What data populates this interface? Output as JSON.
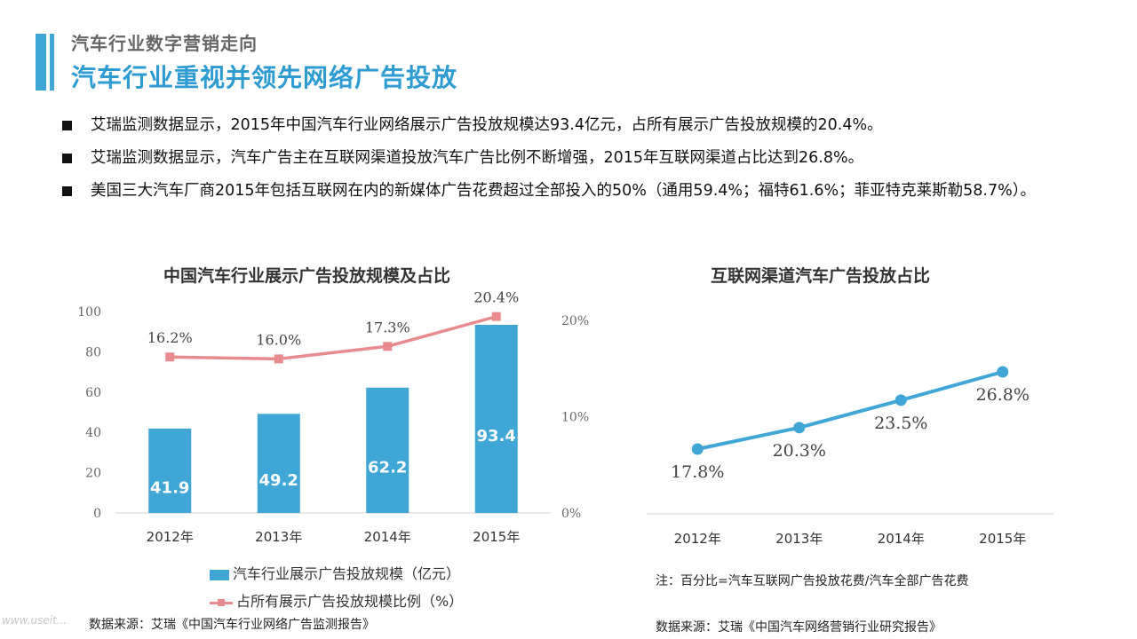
{
  "header": {
    "subtitle": "汽车行业数字营销走向",
    "title": "汽车行业重视并领先网络广告投放"
  },
  "bullets": [
    "艾瑞监测数据显示，2015年中国汽车行业网络展示广告投放规模达93.4亿元，占所有展示广告投放规模的20.4%。",
    "艾瑞监测数据显示，汽车广告主在互联网渠道投放汽车广告比例不断增强，2015年互联网渠道占比达到26.8%。",
    "美国三大汽车厂商2015年包括互联网在内的新媒体广告花费超过全部投入的50%（通用59.4%；福特61.6%；菲亚特克莱斯勒58.7%）。"
  ],
  "colors": {
    "accent": "#3fa6d6",
    "line_pink": "#e88b8f",
    "title_blue": "#2e9bd1"
  },
  "chart_data": [
    {
      "type": "bar",
      "title": "中国汽车行业展示广告投放规模及占比",
      "categories": [
        "2012年",
        "2013年",
        "2014年",
        "2015年"
      ],
      "series": [
        {
          "name": "汽车行业展示广告投放规模（亿元）",
          "type": "bar",
          "axis": "left",
          "values": [
            41.9,
            49.2,
            62.2,
            93.4
          ],
          "labels": [
            "41.9",
            "49.2",
            "62.2",
            "93.4"
          ]
        },
        {
          "name": "占所有展示广告投放规模比例（%）",
          "type": "line",
          "axis": "right",
          "values": [
            16.2,
            16.0,
            17.3,
            20.4
          ],
          "labels": [
            "16.2%",
            "16.0%",
            "17.3%",
            "20.4%"
          ]
        }
      ],
      "ylim": [
        0,
        100
      ],
      "yticks": [
        "0",
        "20",
        "40",
        "60",
        "80",
        "100"
      ],
      "y2lim": [
        0,
        20
      ],
      "y2ticks": [
        "0%",
        "10%",
        "20%"
      ],
      "legend": "bottom",
      "grid": false,
      "source": "数据来源：艾瑞《中国汽车行业网络广告监测报告》"
    },
    {
      "type": "line",
      "title": "互联网渠道汽车广告投放占比",
      "categories": [
        "2012年",
        "2013年",
        "2014年",
        "2015年"
      ],
      "series": [
        {
          "values": [
            17.8,
            20.3,
            23.5,
            26.8
          ],
          "labels": [
            "17.8%",
            "20.3%",
            "23.5%",
            "26.8%"
          ]
        }
      ],
      "grid": false,
      "note": "注：百分比=汽车互联网广告投放花费/汽车全部广告花费",
      "source": "数据来源：艾瑞《中国汽车网络营销行业研究报告》"
    }
  ],
  "watermark": "www.useit..."
}
